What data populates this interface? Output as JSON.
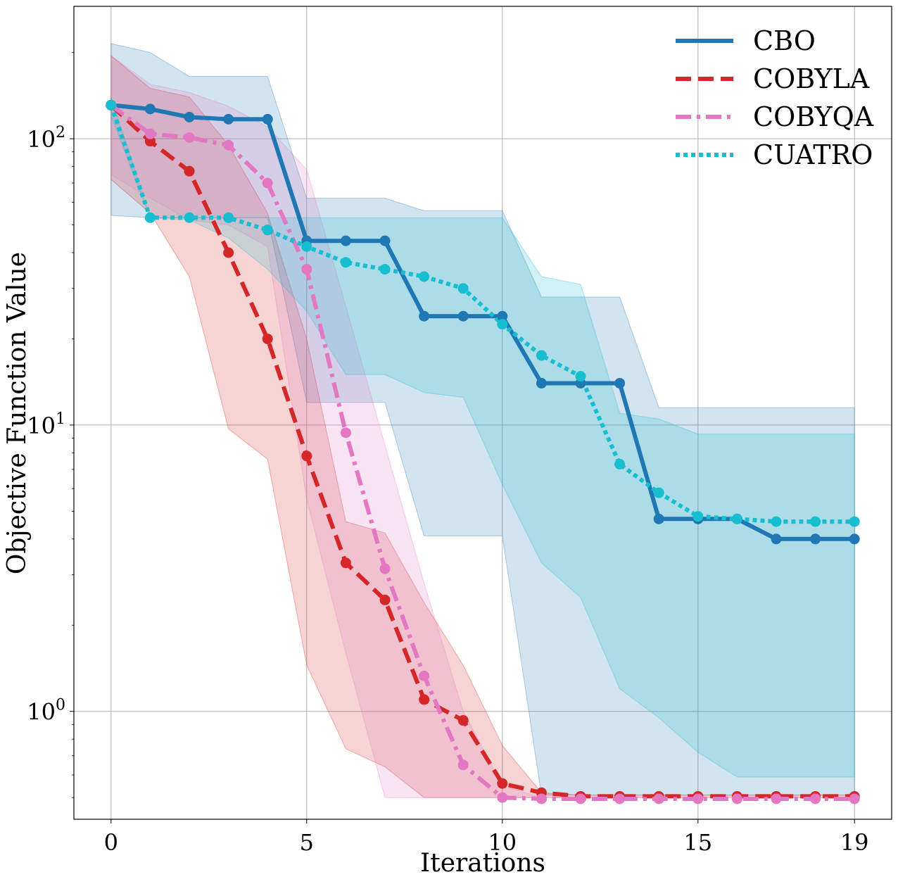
{
  "chart_data": {
    "type": "line",
    "title": "",
    "xlabel": "Iterations",
    "ylabel": "Objective Function Value",
    "yscale": "log",
    "grid": true,
    "legend_position": "top-right",
    "xticks": [
      0,
      5,
      10,
      15,
      19
    ],
    "xtick_labels": [
      "0",
      "5",
      "10",
      "15",
      "19"
    ],
    "yticks": [
      1,
      10,
      100
    ],
    "ytick_labels": [
      {
        "base": "10",
        "exp": "0"
      },
      {
        "base": "10",
        "exp": "1"
      },
      {
        "base": "10",
        "exp": "2"
      }
    ],
    "xlim": [
      -0.95,
      19.95
    ],
    "ylim": [
      0.42,
      290
    ],
    "x": [
      0,
      1,
      2,
      3,
      4,
      5,
      6,
      7,
      8,
      9,
      10,
      11,
      12,
      13,
      14,
      15,
      16,
      17,
      18,
      19
    ],
    "series": [
      {
        "name": "CBO",
        "color": "#1f77b4",
        "linestyle": "solid",
        "values": [
          131,
          127,
          119,
          117,
          117,
          44,
          44,
          44,
          24,
          24,
          24,
          14,
          14,
          14,
          4.7,
          4.7,
          4.7,
          4.0,
          4.0,
          4.0
        ],
        "upper": [
          215,
          200,
          165,
          165,
          165,
          62,
          62,
          62,
          56,
          56,
          56,
          28,
          28,
          28,
          11.5,
          11.5,
          11.5,
          11.5,
          11.5,
          11.5
        ],
        "lower": [
          54,
          53,
          53,
          53,
          53,
          12,
          12,
          12,
          4.1,
          4.1,
          4.1,
          0.51,
          0.51,
          0.51,
          0.51,
          0.51,
          0.51,
          0.51,
          0.51,
          0.51
        ],
        "band_fill": "#1f77b4"
      },
      {
        "name": "COBYLA",
        "color": "#d62728",
        "linestyle": "dashed",
        "values": [
          131,
          98,
          77,
          40,
          20,
          7.8,
          3.3,
          2.45,
          1.1,
          0.93,
          0.56,
          0.52,
          0.505,
          0.505,
          0.505,
          0.505,
          0.505,
          0.505,
          0.505,
          0.505
        ],
        "upper": [
          195,
          150,
          140,
          95,
          55,
          20,
          4.6,
          4.2,
          2.4,
          1.45,
          0.76,
          0.52,
          0.51,
          0.51,
          0.51,
          0.51,
          0.51,
          0.51,
          0.51,
          0.51
        ],
        "lower": [
          72,
          55,
          33,
          9.7,
          7.6,
          1.45,
          0.74,
          0.64,
          0.5,
          0.5,
          0.5,
          0.5,
          0.5,
          0.5,
          0.5,
          0.5,
          0.5,
          0.5,
          0.5,
          0.5
        ],
        "band_fill": "#d62728"
      },
      {
        "name": "COBYQA",
        "color": "#e377c2",
        "linestyle": "dashdot",
        "values": [
          131,
          104,
          101,
          95,
          70,
          35,
          9.4,
          3.15,
          1.33,
          0.65,
          0.5,
          0.495,
          0.495,
          0.495,
          0.495,
          0.495,
          0.495,
          0.495,
          0.495,
          0.495
        ],
        "upper": [
          195,
          155,
          145,
          130,
          110,
          78,
          26,
          8.5,
          2.8,
          1.0,
          0.55,
          0.5,
          0.5,
          0.5,
          0.5,
          0.5,
          0.5,
          0.5,
          0.5,
          0.5
        ],
        "lower": [
          75,
          62,
          52,
          50,
          42,
          5.5,
          1.6,
          0.5,
          0.5,
          0.5,
          0.5,
          0.5,
          0.5,
          0.5,
          0.5,
          0.5,
          0.5,
          0.5,
          0.5,
          0.5
        ],
        "band_fill": "#e377c2"
      },
      {
        "name": "CUATRO",
        "color": "#17becf",
        "linestyle": "dotted",
        "values": [
          131,
          53,
          53,
          53,
          48,
          42,
          37,
          35,
          33,
          30,
          22.5,
          17.5,
          14.8,
          7.3,
          5.8,
          4.8,
          4.7,
          4.6,
          4.6,
          4.6
        ],
        "upper": [
          140,
          53,
          53,
          53,
          53,
          53,
          53,
          53,
          53,
          53,
          53,
          33,
          31,
          11,
          10.5,
          9.3,
          9.3,
          9.3,
          9.3,
          9.3
        ],
        "lower": [
          120,
          53,
          52,
          45,
          35,
          25,
          15,
          15,
          13,
          12.5,
          6.2,
          3.3,
          2.5,
          1.2,
          0.95,
          0.72,
          0.59,
          0.59,
          0.59,
          0.59
        ],
        "band_fill": "#17becf"
      }
    ]
  }
}
